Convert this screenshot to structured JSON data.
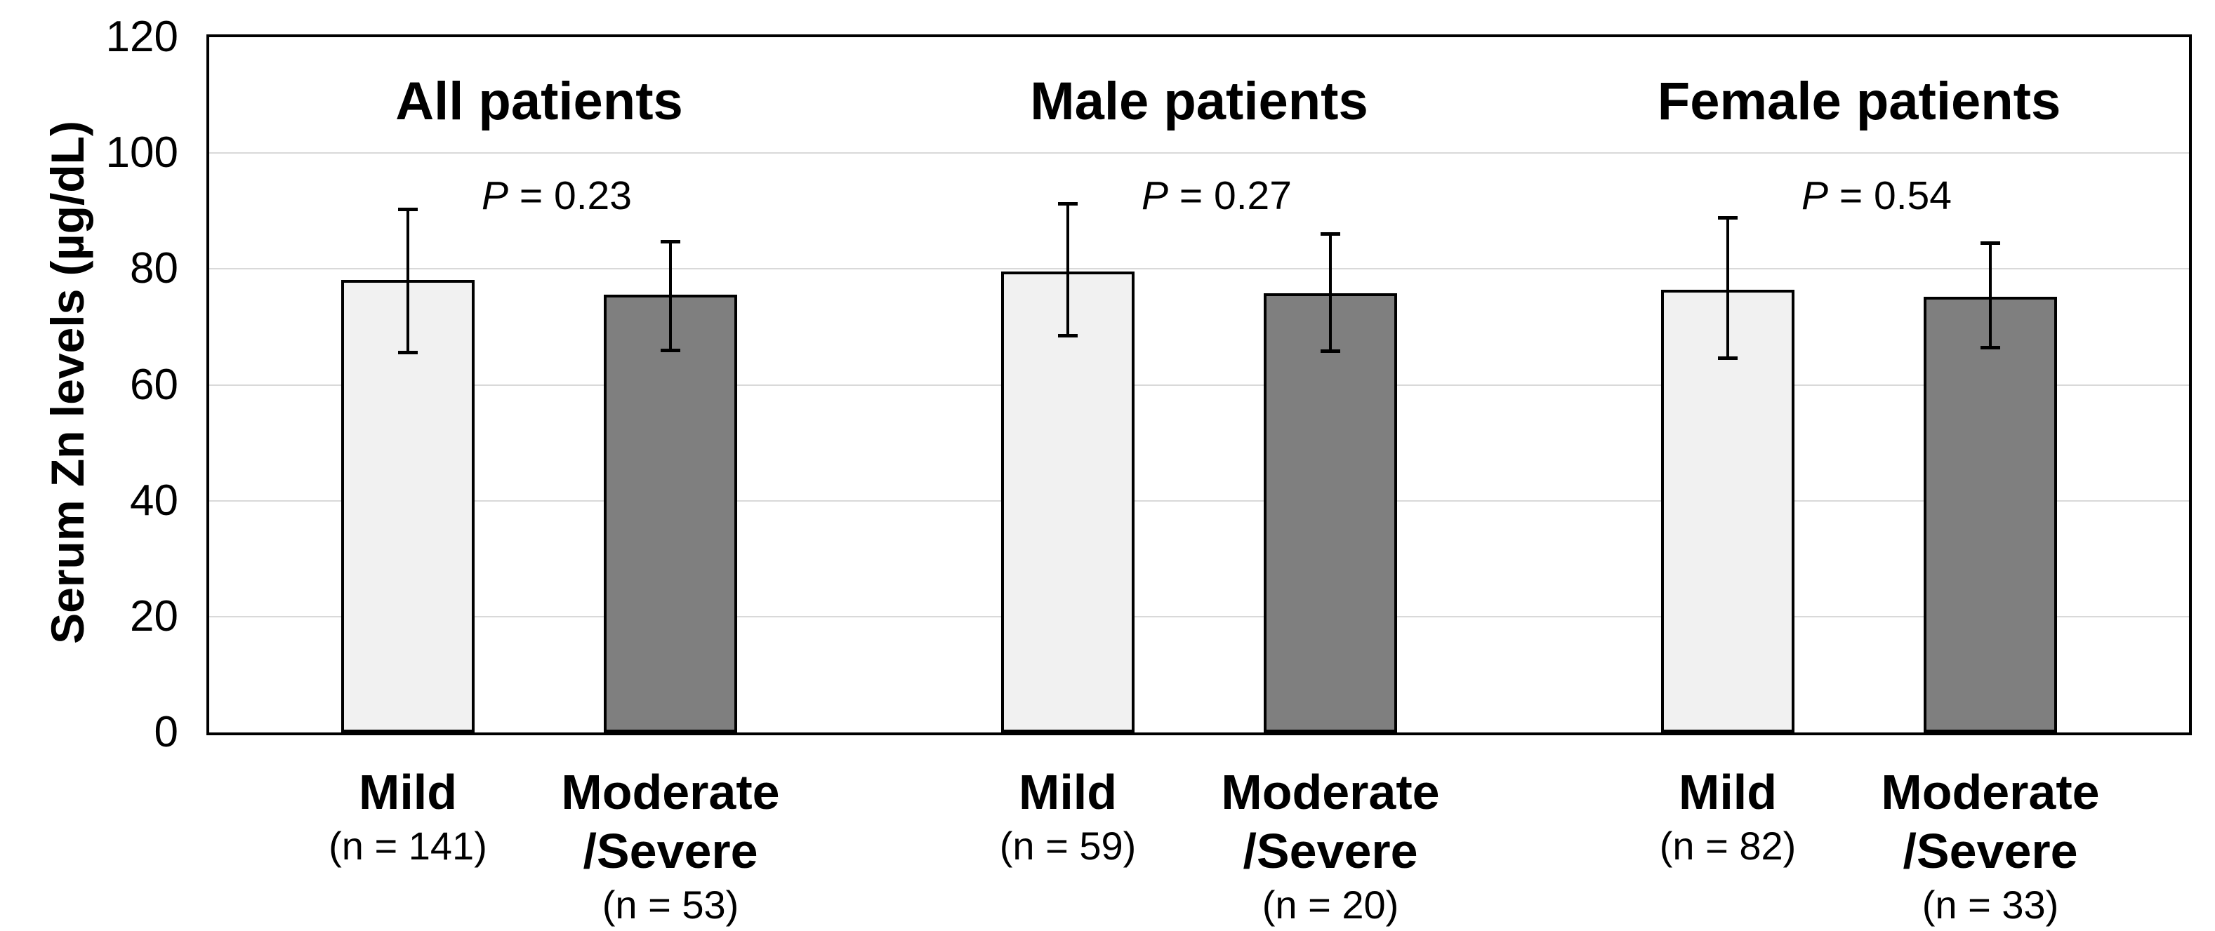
{
  "figure": {
    "background": "#ffffff"
  },
  "chart_data": {
    "type": "bar",
    "title": "",
    "ylabel": "Serum Zn levels (µg/dL)",
    "xlabel": "",
    "ylim": [
      0,
      120
    ],
    "y_ticks": [
      0,
      20,
      40,
      60,
      80,
      100,
      120
    ],
    "grid": "horizontal gridlines at each y tick, plot framed by black border",
    "legend": "none",
    "style": {
      "mild_fill": "#f1f1f1",
      "moderate_severe_fill": "#7f7f7f",
      "bar_border_color": "#000000",
      "gridline_color": "#d9d9d9",
      "error_bar_color": "#000000"
    },
    "groups": [
      {
        "title": "All patients",
        "p_label": "P = 0.23",
        "bars": [
          {
            "category": "Mild",
            "label_lines": [
              "Mild"
            ],
            "n_label": "(n = 141)",
            "n": 141,
            "severity": "mild",
            "mean": 78.1,
            "upper": 90.3,
            "lower": 65.5
          },
          {
            "category": "Moderate/Severe",
            "label_lines": [
              "Moderate",
              "/Severe"
            ],
            "n_label": "(n = 53)",
            "n": 53,
            "severity": "moderate_severe",
            "mean": 75.5,
            "upper": 84.8,
            "lower": 65.9
          }
        ]
      },
      {
        "title": "Male patients",
        "p_label": "P = 0.27",
        "bars": [
          {
            "category": "Mild",
            "label_lines": [
              "Mild"
            ],
            "n_label": "(n = 59)",
            "n": 59,
            "severity": "mild",
            "mean": 79.5,
            "upper": 91.3,
            "lower": 68.4
          },
          {
            "category": "Moderate/Severe",
            "label_lines": [
              "Moderate",
              "/Severe"
            ],
            "n_label": "(n = 20)",
            "n": 20,
            "severity": "moderate_severe",
            "mean": 75.8,
            "upper": 86.1,
            "lower": 65.7
          }
        ]
      },
      {
        "title": "Female patients",
        "p_label": "P = 0.54",
        "bars": [
          {
            "category": "Mild",
            "label_lines": [
              "Mild"
            ],
            "n_label": "(n = 82)",
            "n": 82,
            "severity": "mild",
            "mean": 76.4,
            "upper": 88.9,
            "lower": 64.5
          },
          {
            "category": "Moderate/Severe",
            "label_lines": [
              "Moderate",
              "/Severe"
            ],
            "n_label": "(n = 33)",
            "n": 33,
            "severity": "moderate_severe",
            "mean": 75.2,
            "upper": 84.5,
            "lower": 66.4
          }
        ]
      }
    ]
  }
}
